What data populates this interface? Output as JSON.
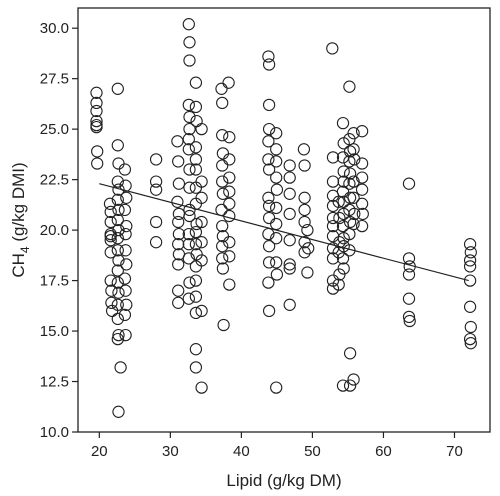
{
  "chart_data": {
    "type": "scatter",
    "title": "",
    "xlabel": "Lipid (g/kg DM)",
    "ylabel_main": "CH",
    "ylabel_sub": "4",
    "ylabel_tail": " (g/kg DMI)",
    "xlim": [
      17,
      75
    ],
    "ylim": [
      10,
      31
    ],
    "x_ticks": [
      20,
      30,
      40,
      50,
      60,
      70
    ],
    "y_ticks": [
      "10.0",
      "12.5",
      "15.0",
      "17.5",
      "20.0",
      "22.5",
      "25.0",
      "27.5",
      "30.0"
    ],
    "grid": false,
    "legend": "none",
    "regression_line": {
      "x": [
        20,
        72
      ],
      "y": [
        22.3,
        17.5
      ]
    },
    "series": [
      {
        "points": [
          [
            19.6,
            26.8
          ],
          [
            19.6,
            26.3
          ],
          [
            19.6,
            25.9
          ],
          [
            19.6,
            25.4
          ],
          [
            19.6,
            25.1
          ],
          [
            19.6,
            25.2
          ],
          [
            19.7,
            23.9
          ],
          [
            19.7,
            23.3
          ],
          [
            21.5,
            21.3
          ],
          [
            21.6,
            20.9
          ],
          [
            21.6,
            20.4
          ],
          [
            21.6,
            19.8
          ],
          [
            21.6,
            19.5
          ],
          [
            21.6,
            19.7
          ],
          [
            21.6,
            18.9
          ],
          [
            21.6,
            17.5
          ],
          [
            21.7,
            17.0
          ],
          [
            21.7,
            16.4
          ],
          [
            21.8,
            16.0
          ],
          [
            22.6,
            27.0
          ],
          [
            22.6,
            24.2
          ],
          [
            22.7,
            23.3
          ],
          [
            22.6,
            22.4
          ],
          [
            22.7,
            22.0
          ],
          [
            22.6,
            21.5
          ],
          [
            22.7,
            21.0
          ],
          [
            22.6,
            20.5
          ],
          [
            22.7,
            20.0
          ],
          [
            22.6,
            19.6
          ],
          [
            22.6,
            19.0
          ],
          [
            22.7,
            18.5
          ],
          [
            22.6,
            18.0
          ],
          [
            22.6,
            17.4
          ],
          [
            22.7,
            16.9
          ],
          [
            22.6,
            16.3
          ],
          [
            22.6,
            15.6
          ],
          [
            22.7,
            14.8
          ],
          [
            22.6,
            14.6
          ],
          [
            22.7,
            11.0
          ],
          [
            23.0,
            13.2
          ],
          [
            23.6,
            23.0
          ],
          [
            23.7,
            22.2
          ],
          [
            23.8,
            21.6
          ],
          [
            23.6,
            21.0
          ],
          [
            23.8,
            20.2
          ],
          [
            23.7,
            19.8
          ],
          [
            23.7,
            19.0
          ],
          [
            23.8,
            18.3
          ],
          [
            23.6,
            17.6
          ],
          [
            23.7,
            17.0
          ],
          [
            23.8,
            16.3
          ],
          [
            23.6,
            15.8
          ],
          [
            23.7,
            14.8
          ],
          [
            28.0,
            23.5
          ],
          [
            28.0,
            22.4
          ],
          [
            28.0,
            22.0
          ],
          [
            28.0,
            20.4
          ],
          [
            28.0,
            19.4
          ],
          [
            31.0,
            24.4
          ],
          [
            31.1,
            23.4
          ],
          [
            31.2,
            22.3
          ],
          [
            31.0,
            21.4
          ],
          [
            31.2,
            20.8
          ],
          [
            31.1,
            20.4
          ],
          [
            31.2,
            19.8
          ],
          [
            31.1,
            19.3
          ],
          [
            31.2,
            18.8
          ],
          [
            31.1,
            18.3
          ],
          [
            31.1,
            17.0
          ],
          [
            31.1,
            16.4
          ],
          [
            32.6,
            30.2
          ],
          [
            32.7,
            29.3
          ],
          [
            32.7,
            28.4
          ],
          [
            32.6,
            26.2
          ],
          [
            32.7,
            25.6
          ],
          [
            32.7,
            25.0
          ],
          [
            32.6,
            24.5
          ],
          [
            32.6,
            24.0
          ],
          [
            32.7,
            23.0
          ],
          [
            32.7,
            22.1
          ],
          [
            32.7,
            21.0
          ],
          [
            32.7,
            20.7
          ],
          [
            32.6,
            19.8
          ],
          [
            32.6,
            19.3
          ],
          [
            32.6,
            18.6
          ],
          [
            32.7,
            17.4
          ],
          [
            32.6,
            16.6
          ],
          [
            33.6,
            27.3
          ],
          [
            33.6,
            26.1
          ],
          [
            33.7,
            25.4
          ],
          [
            33.6,
            24.1
          ],
          [
            33.6,
            23.5
          ],
          [
            33.6,
            23.0
          ],
          [
            33.6,
            22.1
          ],
          [
            33.6,
            21.3
          ],
          [
            33.7,
            20.3
          ],
          [
            33.6,
            19.9
          ],
          [
            33.6,
            19.3
          ],
          [
            33.7,
            18.8
          ],
          [
            33.6,
            18.2
          ],
          [
            33.6,
            17.5
          ],
          [
            33.6,
            16.7
          ],
          [
            33.6,
            15.9
          ],
          [
            33.6,
            14.1
          ],
          [
            33.6,
            13.2
          ],
          [
            34.4,
            25.0
          ],
          [
            34.4,
            22.4
          ],
          [
            34.4,
            21.6
          ],
          [
            34.4,
            20.4
          ],
          [
            34.4,
            19.4
          ],
          [
            34.4,
            18.5
          ],
          [
            34.4,
            16.0
          ],
          [
            34.4,
            12.2
          ],
          [
            37.2,
            27.0
          ],
          [
            37.3,
            26.3
          ],
          [
            37.3,
            24.7
          ],
          [
            37.4,
            23.8
          ],
          [
            37.3,
            23.2
          ],
          [
            37.3,
            22.4
          ],
          [
            37.4,
            21.8
          ],
          [
            37.2,
            21.0
          ],
          [
            37.3,
            20.2
          ],
          [
            37.4,
            19.7
          ],
          [
            37.3,
            19.2
          ],
          [
            37.3,
            18.6
          ],
          [
            37.4,
            18.1
          ],
          [
            38.2,
            27.3
          ],
          [
            38.3,
            24.6
          ],
          [
            38.3,
            23.5
          ],
          [
            38.3,
            22.6
          ],
          [
            38.3,
            21.9
          ],
          [
            38.3,
            21.3
          ],
          [
            38.3,
            20.7
          ],
          [
            38.3,
            19.4
          ],
          [
            38.3,
            18.7
          ],
          [
            38.3,
            17.3
          ],
          [
            37.5,
            15.3
          ],
          [
            43.8,
            28.6
          ],
          [
            43.9,
            28.2
          ],
          [
            43.9,
            26.2
          ],
          [
            43.9,
            25.0
          ],
          [
            43.8,
            24.4
          ],
          [
            43.8,
            23.5
          ],
          [
            43.9,
            23.0
          ],
          [
            43.8,
            21.6
          ],
          [
            43.9,
            21.2
          ],
          [
            43.9,
            20.6
          ],
          [
            43.8,
            19.8
          ],
          [
            43.9,
            19.2
          ],
          [
            43.9,
            18.4
          ],
          [
            43.8,
            17.4
          ],
          [
            43.9,
            16.0
          ],
          [
            44.9,
            24.8
          ],
          [
            44.9,
            24.0
          ],
          [
            44.9,
            23.4
          ],
          [
            44.9,
            22.6
          ],
          [
            45.0,
            22.0
          ],
          [
            44.9,
            21.1
          ],
          [
            44.9,
            20.3
          ],
          [
            44.9,
            19.6
          ],
          [
            44.9,
            18.4
          ],
          [
            45.0,
            17.8
          ],
          [
            44.9,
            12.2
          ],
          [
            46.8,
            23.2
          ],
          [
            46.8,
            22.6
          ],
          [
            46.8,
            21.8
          ],
          [
            46.8,
            20.8
          ],
          [
            46.8,
            19.5
          ],
          [
            46.8,
            18.3
          ],
          [
            46.8,
            18.1
          ],
          [
            46.8,
            16.3
          ],
          [
            48.8,
            24.0
          ],
          [
            48.9,
            23.2
          ],
          [
            48.9,
            21.6
          ],
          [
            48.9,
            21.0
          ],
          [
            48.9,
            20.4
          ],
          [
            48.9,
            19.4
          ],
          [
            48.9,
            18.9
          ],
          [
            49.3,
            20.0
          ],
          [
            49.4,
            19.1
          ],
          [
            49.3,
            17.9
          ],
          [
            52.8,
            29.0
          ],
          [
            52.9,
            23.6
          ],
          [
            52.9,
            22.4
          ],
          [
            52.9,
            21.7
          ],
          [
            52.9,
            21.2
          ],
          [
            52.9,
            20.6
          ],
          [
            52.9,
            20.2
          ],
          [
            52.9,
            19.7
          ],
          [
            52.9,
            19.1
          ],
          [
            52.9,
            18.6
          ],
          [
            52.9,
            17.5
          ],
          [
            52.9,
            17.1
          ],
          [
            53.7,
            21.4
          ],
          [
            53.8,
            20.6
          ],
          [
            53.8,
            19.4
          ],
          [
            53.7,
            18.9
          ],
          [
            53.8,
            17.8
          ],
          [
            53.7,
            17.3
          ],
          [
            54.3,
            25.3
          ],
          [
            54.4,
            24.3
          ],
          [
            54.3,
            23.6
          ],
          [
            54.4,
            22.9
          ],
          [
            54.4,
            22.4
          ],
          [
            54.3,
            21.9
          ],
          [
            54.4,
            21.4
          ],
          [
            54.4,
            20.8
          ],
          [
            54.3,
            20.2
          ],
          [
            54.4,
            19.6
          ],
          [
            54.4,
            19.2
          ],
          [
            54.3,
            18.6
          ],
          [
            54.4,
            18.1
          ],
          [
            54.3,
            12.3
          ],
          [
            55.2,
            27.1
          ],
          [
            55.2,
            24.5
          ],
          [
            55.3,
            23.9
          ],
          [
            55.2,
            23.4
          ],
          [
            55.3,
            22.8
          ],
          [
            55.2,
            22.3
          ],
          [
            55.3,
            21.6
          ],
          [
            55.2,
            21.0
          ],
          [
            55.3,
            20.4
          ],
          [
            55.2,
            19.8
          ],
          [
            55.2,
            19.0
          ],
          [
            55.3,
            13.9
          ],
          [
            55.3,
            12.3
          ],
          [
            55.8,
            24.8
          ],
          [
            55.8,
            24.0
          ],
          [
            55.9,
            23.5
          ],
          [
            55.8,
            22.4
          ],
          [
            55.8,
            21.6
          ],
          [
            55.9,
            20.8
          ],
          [
            55.8,
            20.3
          ],
          [
            55.8,
            12.6
          ],
          [
            57.0,
            24.9
          ],
          [
            57.0,
            23.3
          ],
          [
            57.0,
            22.6
          ],
          [
            57.0,
            22.0
          ],
          [
            57.0,
            21.3
          ],
          [
            57.1,
            20.8
          ],
          [
            57.0,
            20.2
          ],
          [
            63.6,
            22.3
          ],
          [
            63.6,
            18.6
          ],
          [
            63.7,
            18.2
          ],
          [
            63.6,
            17.8
          ],
          [
            63.6,
            16.6
          ],
          [
            63.6,
            15.7
          ],
          [
            63.7,
            15.5
          ],
          [
            72.2,
            19.3
          ],
          [
            72.3,
            18.9
          ],
          [
            72.2,
            18.5
          ],
          [
            72.2,
            18.2
          ],
          [
            72.2,
            17.5
          ],
          [
            72.2,
            16.2
          ],
          [
            72.3,
            15.2
          ],
          [
            72.2,
            14.6
          ],
          [
            72.3,
            14.4
          ]
        ]
      }
    ]
  }
}
